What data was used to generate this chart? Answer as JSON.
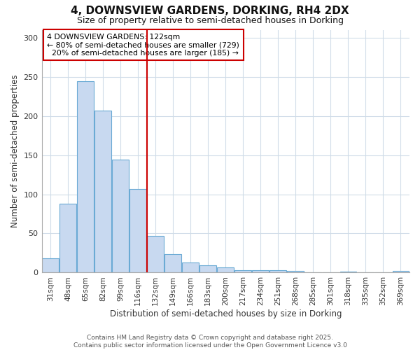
{
  "title": "4, DOWNSVIEW GARDENS, DORKING, RH4 2DX",
  "subtitle": "Size of property relative to semi-detached houses in Dorking",
  "xlabel": "Distribution of semi-detached houses by size in Dorking",
  "ylabel": "Number of semi-detached properties",
  "property_label": "4 DOWNSVIEW GARDENS: 122sqm",
  "pct_smaller": 80,
  "pct_larger": 20,
  "count_smaller": 729,
  "count_larger": 185,
  "bin_labels": [
    "31sqm",
    "48sqm",
    "65sqm",
    "82sqm",
    "99sqm",
    "116sqm",
    "132sqm",
    "149sqm",
    "166sqm",
    "183sqm",
    "200sqm",
    "217sqm",
    "234sqm",
    "251sqm",
    "268sqm",
    "285sqm",
    "301sqm",
    "318sqm",
    "335sqm",
    "352sqm",
    "369sqm"
  ],
  "bar_values": [
    18,
    88,
    244,
    207,
    144,
    107,
    47,
    24,
    13,
    9,
    7,
    3,
    3,
    3,
    2,
    0,
    0,
    1,
    0,
    0,
    2
  ],
  "bar_color": "#c8d9f0",
  "bar_edgecolor": "#6aaad4",
  "vline_color": "#cc0000",
  "annotation_box_color": "#cc0000",
  "bg_color": "#ffffff",
  "plot_bg_color": "#ffffff",
  "grid_color": "#d0dce8",
  "footer": "Contains HM Land Registry data © Crown copyright and database right 2025.\nContains public sector information licensed under the Open Government Licence v3.0"
}
